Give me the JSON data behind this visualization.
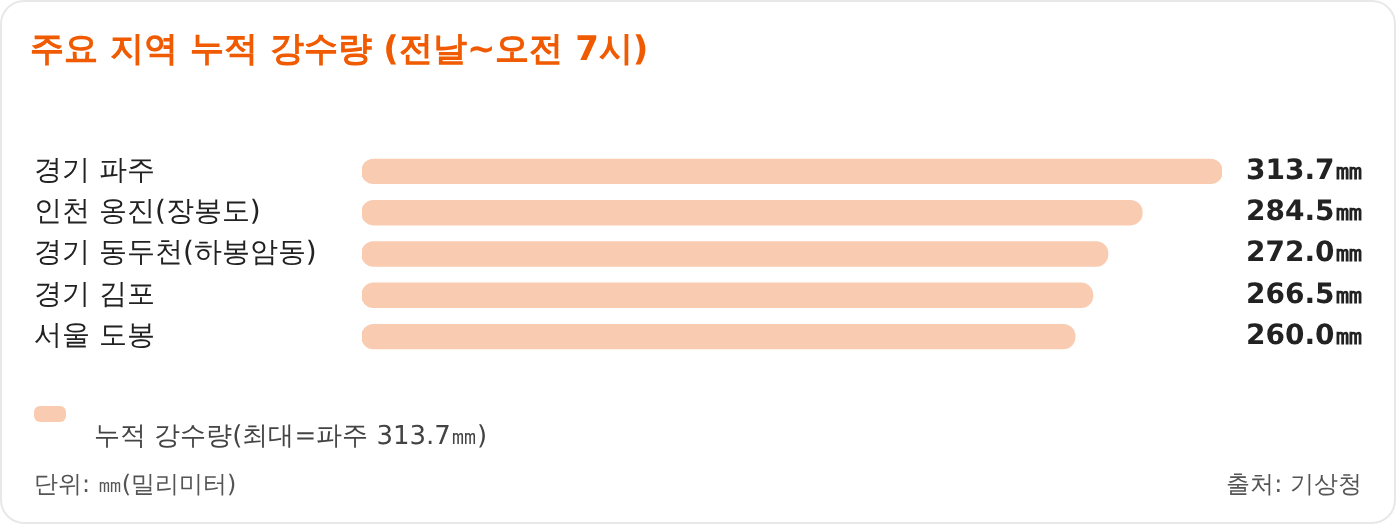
{
  "chart_data": {
    "type": "bar",
    "orientation": "horizontal",
    "title": "주요 지역 누적 강수량 (전날~오전 7시)",
    "categories": [
      "경기 파주",
      "인천 옹진(장봉도)",
      "경기 동두천(하봉암동)",
      "경기 김포",
      "서울 도봉"
    ],
    "series": [
      {
        "name": "누적 강수량(최대=파주 313.7㎜)",
        "color": "#f9cbb0",
        "values": [
          313.7,
          284.5,
          272.0,
          266.5,
          260.0
        ],
        "value_labels": [
          "313.7㎜",
          "284.5㎜",
          "272.0㎜",
          "266.5㎜",
          "260.0㎜"
        ]
      }
    ],
    "legend": "bottom left",
    "grid": false,
    "annotations": [
      "단위: ㎜(밀리미터)",
      "출처: 기상청"
    ]
  }
}
